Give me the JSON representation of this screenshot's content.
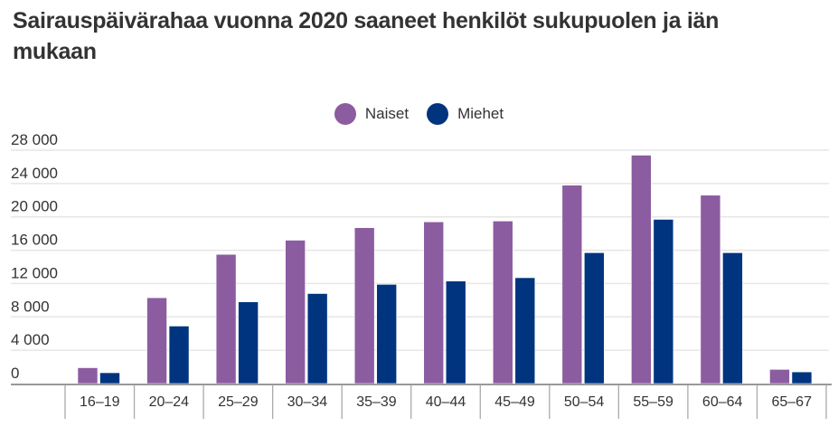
{
  "chart_data": {
    "type": "bar",
    "title": "Sairauspäivärahaa vuonna 2020 saaneet henkilöt sukupuolen ja iän mukaan",
    "categories": [
      "16–19",
      "20–24",
      "25–29",
      "30–34",
      "35–39",
      "40–44",
      "45–49",
      "50–54",
      "55–59",
      "60–64",
      "65–67"
    ],
    "series": [
      {
        "name": "Naiset",
        "color": "#8c5ca0",
        "values": [
          1900,
          10300,
          15500,
          17200,
          18700,
          19400,
          19500,
          23800,
          27400,
          22600,
          1700
        ]
      },
      {
        "name": "Miehet",
        "color": "#00347f",
        "values": [
          1300,
          6900,
          9800,
          10800,
          11900,
          12300,
          12700,
          15700,
          19700,
          15700,
          1400
        ]
      }
    ],
    "yticks": [
      0,
      4000,
      8000,
      12000,
      16000,
      20000,
      24000,
      28000
    ],
    "ytick_labels": [
      "0",
      "4 000",
      "8 000",
      "12 000",
      "16 000",
      "20 000",
      "24 000",
      "28 000"
    ],
    "ylim": [
      0,
      28000
    ],
    "grid": true,
    "legend": "top-center",
    "xlabel": "",
    "ylabel": ""
  }
}
